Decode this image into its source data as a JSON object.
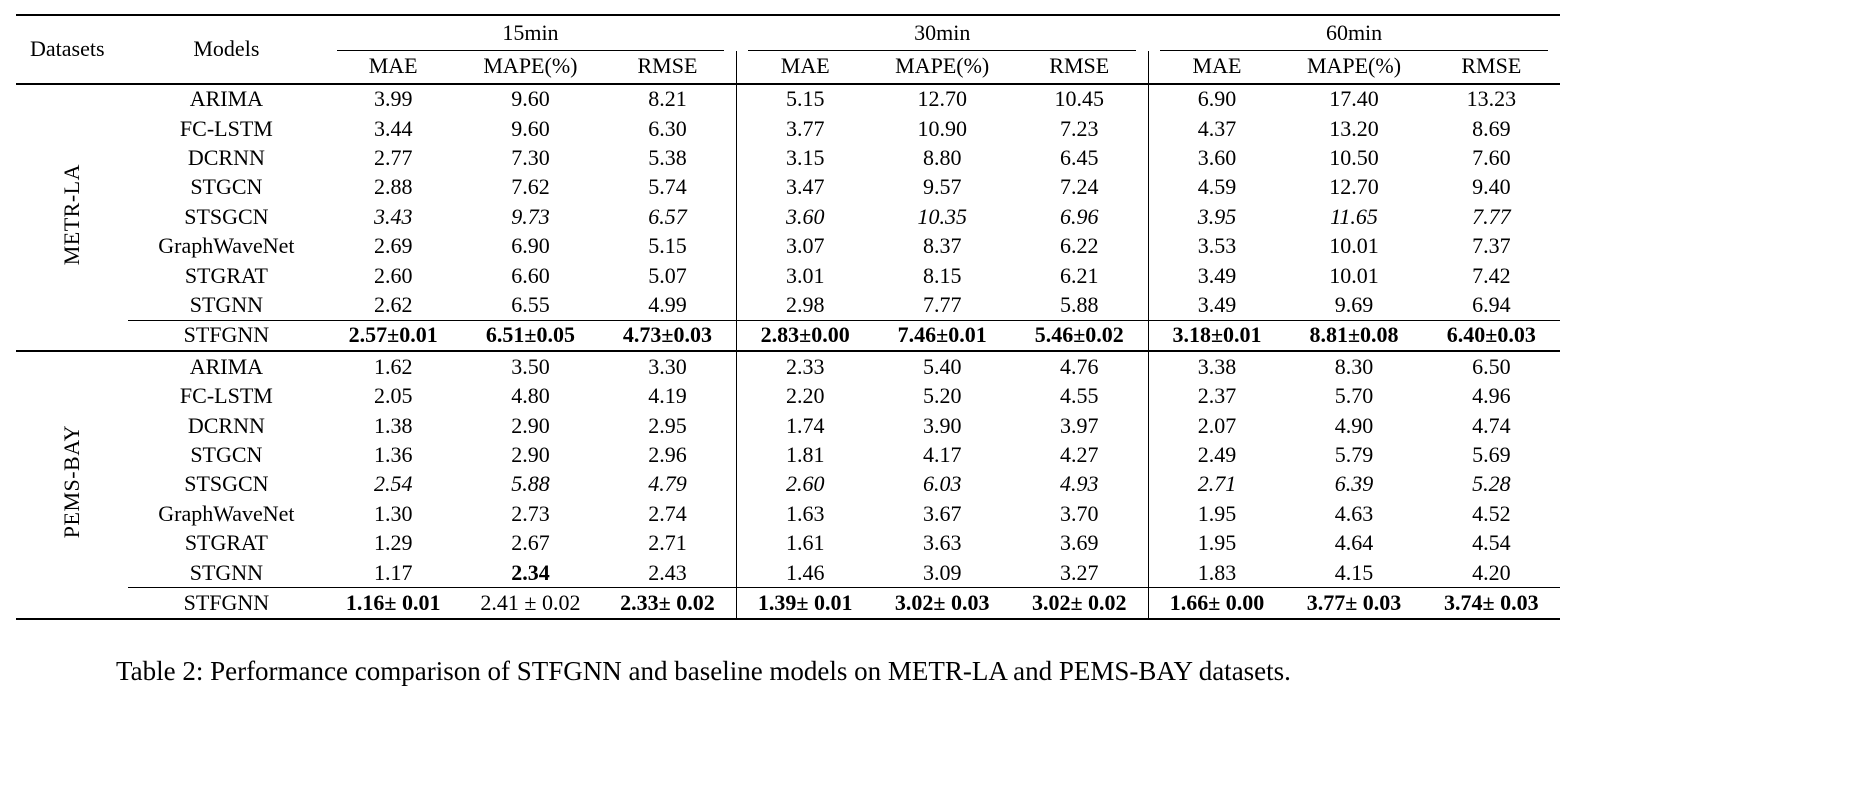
{
  "table": {
    "header": {
      "datasets_label": "Datasets",
      "models_label": "Models",
      "groups": [
        "15min",
        "30min",
        "60min"
      ],
      "metrics": [
        "MAE",
        "MAPE(%)",
        "RMSE"
      ]
    },
    "blocks": [
      {
        "dataset": "METR-LA",
        "rows": [
          {
            "model": "ARIMA",
            "style": "normal",
            "values": [
              "3.99",
              "9.60",
              "8.21",
              "5.15",
              "12.70",
              "10.45",
              "6.90",
              "17.40",
              "13.23"
            ]
          },
          {
            "model": "FC-LSTM",
            "style": "normal",
            "values": [
              "3.44",
              "9.60",
              "6.30",
              "3.77",
              "10.90",
              "7.23",
              "4.37",
              "13.20",
              "8.69"
            ]
          },
          {
            "model": "DCRNN",
            "style": "normal",
            "values": [
              "2.77",
              "7.30",
              "5.38",
              "3.15",
              "8.80",
              "6.45",
              "3.60",
              "10.50",
              "7.60"
            ]
          },
          {
            "model": "STGCN",
            "style": "normal",
            "values": [
              "2.88",
              "7.62",
              "5.74",
              "3.47",
              "9.57",
              "7.24",
              "4.59",
              "12.70",
              "9.40"
            ]
          },
          {
            "model": "STSGCN",
            "style": "italic",
            "values": [
              "3.43",
              "9.73",
              "6.57",
              "3.60",
              "10.35",
              "6.96",
              "3.95",
              "11.65",
              "7.77"
            ]
          },
          {
            "model": "GraphWaveNet",
            "style": "normal",
            "values": [
              "2.69",
              "6.90",
              "5.15",
              "3.07",
              "8.37",
              "6.22",
              "3.53",
              "10.01",
              "7.37"
            ]
          },
          {
            "model": "STGRAT",
            "style": "normal",
            "values": [
              "2.60",
              "6.60",
              "5.07",
              "3.01",
              "8.15",
              "6.21",
              "3.49",
              "10.01",
              "7.42"
            ]
          },
          {
            "model": "STGNN",
            "style": "normal",
            "values": [
              "2.62",
              "6.55",
              "4.99",
              "2.98",
              "7.77",
              "5.88",
              "3.49",
              "9.69",
              "6.94"
            ]
          },
          {
            "model": "STFGNN",
            "style": "bold",
            "rule_above": true,
            "values": [
              "2.57±0.01",
              "6.51±0.05",
              "4.73±0.03",
              "2.83±0.00",
              "7.46±0.01",
              "5.46±0.02",
              "3.18±0.01",
              "8.81±0.08",
              "6.40±0.03"
            ]
          }
        ]
      },
      {
        "dataset": "PEMS-BAY",
        "rows": [
          {
            "model": "ARIMA",
            "style": "normal",
            "values": [
              "1.62",
              "3.50",
              "3.30",
              "2.33",
              "5.40",
              "4.76",
              "3.38",
              "8.30",
              "6.50"
            ]
          },
          {
            "model": "FC-LSTM",
            "style": "normal",
            "values": [
              "2.05",
              "4.80",
              "4.19",
              "2.20",
              "5.20",
              "4.55",
              "2.37",
              "5.70",
              "4.96"
            ]
          },
          {
            "model": "DCRNN",
            "style": "normal",
            "values": [
              "1.38",
              "2.90",
              "2.95",
              "1.74",
              "3.90",
              "3.97",
              "2.07",
              "4.90",
              "4.74"
            ]
          },
          {
            "model": "STGCN",
            "style": "normal",
            "values": [
              "1.36",
              "2.90",
              "2.96",
              "1.81",
              "4.17",
              "4.27",
              "2.49",
              "5.79",
              "5.69"
            ]
          },
          {
            "model": "STSGCN",
            "style": "italic",
            "values": [
              "2.54",
              "5.88",
              "4.79",
              "2.60",
              "6.03",
              "4.93",
              "2.71",
              "6.39",
              "5.28"
            ]
          },
          {
            "model": "GraphWaveNet",
            "style": "normal",
            "values": [
              "1.30",
              "2.73",
              "2.74",
              "1.63",
              "3.67",
              "3.70",
              "1.95",
              "4.63",
              "4.52"
            ]
          },
          {
            "model": "STGRAT",
            "style": "normal",
            "values": [
              "1.29",
              "2.67",
              "2.71",
              "1.61",
              "3.63",
              "3.69",
              "1.95",
              "4.64",
              "4.54"
            ]
          },
          {
            "model": "STGNN",
            "style": "normal",
            "cell_styles": [
              "normal",
              "bold",
              "normal",
              "normal",
              "normal",
              "normal",
              "normal",
              "normal",
              "normal"
            ],
            "values": [
              "1.17",
              "2.34",
              "2.43",
              "1.46",
              "3.09",
              "3.27",
              "1.83",
              "4.15",
              "4.20"
            ]
          },
          {
            "model": "STFGNN",
            "style": "bold",
            "rule_above": true,
            "cell_styles": [
              "bold",
              "normal",
              "bold",
              "bold",
              "bold",
              "bold",
              "bold",
              "bold",
              "bold"
            ],
            "values": [
              "1.16± 0.01",
              "2.41 ± 0.02",
              "2.33± 0.02",
              "1.39± 0.01",
              "3.02± 0.03",
              "3.02± 0.02",
              "1.66± 0.00",
              "3.77± 0.03",
              "3.74± 0.03"
            ]
          }
        ]
      }
    ],
    "caption": "Table 2: Performance comparison of STFGNN and baseline models on METR-LA and PEMS-BAY datasets."
  }
}
